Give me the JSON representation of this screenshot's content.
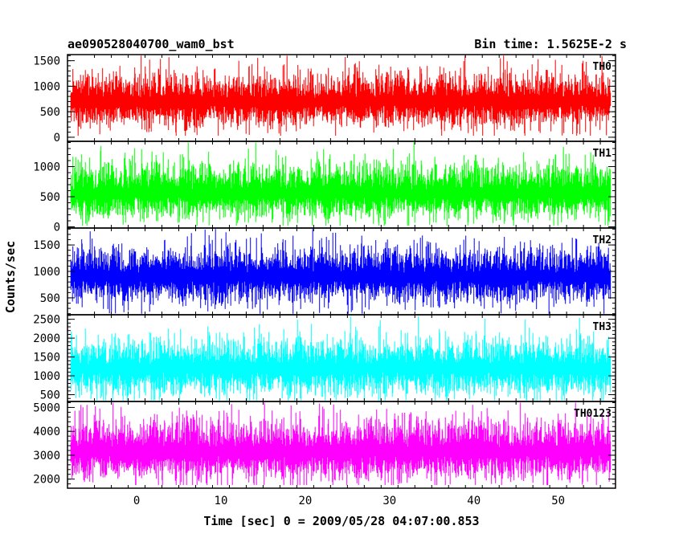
{
  "chart_data": {
    "type": "line",
    "title_left": "ae090528040700_wam0_bst",
    "title_right": "Bin time: 1.5625E-2 s",
    "xlabel": "Time [sec] 0 = 2009/05/28 04:07:00.853",
    "ylabel": "Counts/sec",
    "xlim": [
      -8.2,
      56.8
    ],
    "data_x_range": [
      -7.8,
      56.2
    ],
    "x_ticks": [
      0,
      10,
      20,
      30,
      40,
      50
    ],
    "panels": [
      {
        "name": "TH0",
        "color": "#ff0000",
        "ylim": [
          -80,
          1620
        ],
        "y_ticks": [
          0,
          500,
          1000,
          1500
        ],
        "mean": 700,
        "spread": 230,
        "min": 30,
        "max": 1600
      },
      {
        "name": "TH1",
        "color": "#00ff00",
        "ylim": [
          -20,
          1420
        ],
        "y_ticks": [
          0,
          500,
          1000
        ],
        "mean": 560,
        "spread": 200,
        "min": 20,
        "max": 1400
      },
      {
        "name": "TH2",
        "color": "#0000ff",
        "ylim": [
          180,
          1820
        ],
        "y_ticks": [
          500,
          1000,
          1500
        ],
        "mean": 900,
        "spread": 230,
        "min": 200,
        "max": 1800
      },
      {
        "name": "TH3",
        "color": "#00ffff",
        "ylim": [
          320,
          2620
        ],
        "y_ticks": [
          500,
          1000,
          1500,
          2000,
          2500
        ],
        "mean": 1200,
        "spread": 330,
        "min": 350,
        "max": 2580
      },
      {
        "name": "TH0123",
        "color": "#ff00ff",
        "ylim": [
          1620,
          5250
        ],
        "y_ticks": [
          2000,
          3000,
          4000,
          5000
        ],
        "mean": 3150,
        "spread": 550,
        "min": 1750,
        "max": 5200
      }
    ]
  }
}
